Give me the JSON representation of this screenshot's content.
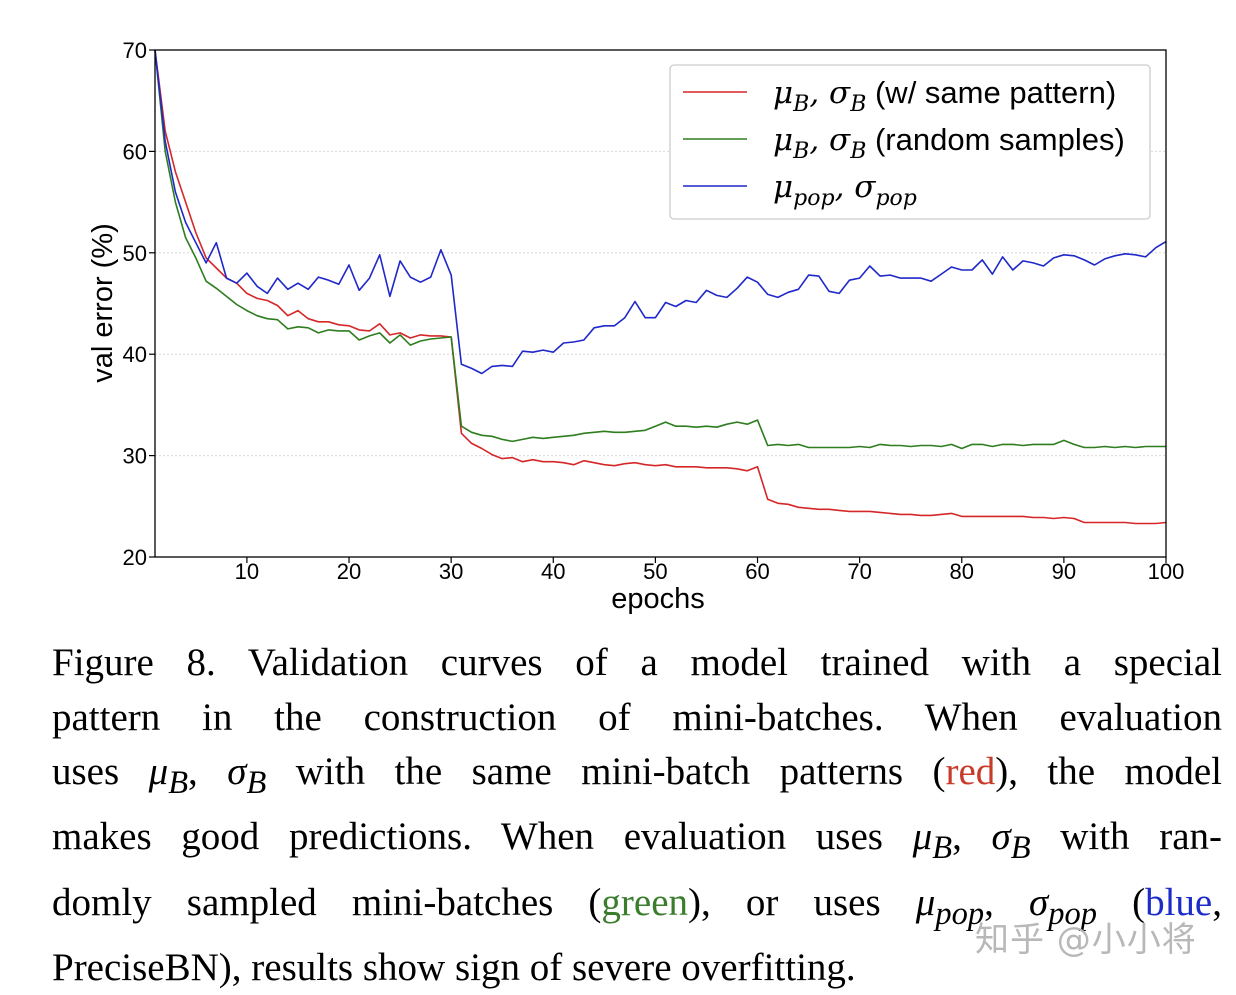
{
  "chart_data": {
    "type": "line",
    "xlabel": "epochs",
    "ylabel": "val error (%)",
    "xlim": [
      1,
      100
    ],
    "ylim": [
      20,
      70
    ],
    "xticks": [
      10,
      20,
      30,
      40,
      50,
      60,
      70,
      80,
      90,
      100
    ],
    "yticks": [
      20,
      30,
      40,
      50,
      60,
      70
    ],
    "grid": "horizontal dotted",
    "legend_position": "top-right",
    "series": [
      {
        "name": "μB, σB (w/ same pattern)",
        "legend_main": "μ",
        "legend_sub1": "B",
        "legend_mid": ", σ",
        "legend_sub2": "B",
        "legend_tail": " (w/ same pattern)",
        "color": "#d62728",
        "x": [
          1,
          2,
          3,
          4,
          5,
          6,
          7,
          8,
          9,
          10,
          11,
          12,
          13,
          14,
          15,
          16,
          17,
          18,
          19,
          20,
          21,
          22,
          23,
          24,
          25,
          26,
          27,
          28,
          29,
          30,
          31,
          32,
          33,
          34,
          35,
          36,
          37,
          38,
          39,
          40,
          41,
          42,
          43,
          44,
          45,
          46,
          47,
          48,
          49,
          50,
          51,
          52,
          53,
          54,
          55,
          56,
          57,
          58,
          59,
          60,
          61,
          62,
          63,
          64,
          65,
          66,
          67,
          68,
          69,
          70,
          71,
          72,
          73,
          74,
          75,
          76,
          77,
          78,
          79,
          80,
          81,
          82,
          83,
          84,
          85,
          86,
          87,
          88,
          89,
          90,
          91,
          92,
          93,
          94,
          95,
          96,
          97,
          98,
          99,
          100
        ],
        "values": [
          70,
          62,
          58,
          55,
          52,
          49.5,
          48.5,
          47.5,
          47,
          46,
          45.5,
          45.3,
          44.8,
          43.8,
          44.3,
          43.5,
          43.2,
          43.2,
          42.9,
          42.8,
          42.4,
          42.3,
          43,
          41.9,
          42.1,
          41.6,
          41.9,
          41.8,
          41.8,
          41.7,
          32.2,
          31.2,
          30.7,
          30.1,
          29.7,
          29.8,
          29.4,
          29.6,
          29.4,
          29.4,
          29.3,
          29.1,
          29.5,
          29.3,
          29.1,
          29,
          29.2,
          29.3,
          29.1,
          29,
          29.1,
          28.9,
          28.9,
          28.9,
          28.8,
          28.8,
          28.8,
          28.7,
          28.5,
          28.9,
          25.7,
          25.3,
          25.2,
          24.9,
          24.8,
          24.7,
          24.7,
          24.6,
          24.5,
          24.5,
          24.5,
          24.4,
          24.3,
          24.2,
          24.2,
          24.1,
          24.1,
          24.2,
          24.3,
          24,
          24,
          24,
          24,
          24,
          24,
          24,
          23.9,
          23.9,
          23.8,
          23.9,
          23.8,
          23.4,
          23.4,
          23.4,
          23.4,
          23.4,
          23.3,
          23.3,
          23.3,
          23.4
        ]
      },
      {
        "name": "μB, σB (random samples)",
        "legend_main": "μ",
        "legend_sub1": "B",
        "legend_mid": ", σ",
        "legend_sub2": "B",
        "legend_tail": " (random samples)",
        "color": "#2e7d1f",
        "x": [
          1,
          2,
          3,
          4,
          5,
          6,
          7,
          8,
          9,
          10,
          11,
          12,
          13,
          14,
          15,
          16,
          17,
          18,
          19,
          20,
          21,
          22,
          23,
          24,
          25,
          26,
          27,
          28,
          29,
          30,
          31,
          32,
          33,
          34,
          35,
          36,
          37,
          38,
          39,
          40,
          41,
          42,
          43,
          44,
          45,
          46,
          47,
          48,
          49,
          50,
          51,
          52,
          53,
          54,
          55,
          56,
          57,
          58,
          59,
          60,
          61,
          62,
          63,
          64,
          65,
          66,
          67,
          68,
          69,
          70,
          71,
          72,
          73,
          74,
          75,
          76,
          77,
          78,
          79,
          80,
          81,
          82,
          83,
          84,
          85,
          86,
          87,
          88,
          89,
          90,
          91,
          92,
          93,
          94,
          95,
          96,
          97,
          98,
          99,
          100
        ],
        "values": [
          70,
          60,
          55,
          51.5,
          49.5,
          47.2,
          46.5,
          45.7,
          44.9,
          44.3,
          43.8,
          43.5,
          43.4,
          42.5,
          42.7,
          42.6,
          42.1,
          42.4,
          42.3,
          42.3,
          41.4,
          41.8,
          42.1,
          41.1,
          41.9,
          40.9,
          41.3,
          41.5,
          41.6,
          41.7,
          32.9,
          32.3,
          32,
          31.9,
          31.6,
          31.4,
          31.6,
          31.8,
          31.7,
          31.8,
          31.9,
          32,
          32.2,
          32.3,
          32.4,
          32.3,
          32.3,
          32.4,
          32.5,
          32.9,
          33.3,
          32.9,
          32.9,
          32.8,
          32.9,
          32.8,
          33.1,
          33.3,
          33.1,
          33.5,
          31,
          31.1,
          31,
          31.1,
          30.8,
          30.8,
          30.8,
          30.8,
          30.8,
          30.9,
          30.8,
          31.1,
          31,
          31,
          30.9,
          31,
          31,
          30.9,
          31.1,
          30.7,
          31.1,
          31.1,
          30.9,
          31.1,
          31.1,
          31,
          31.1,
          31.1,
          31.1,
          31.5,
          31.1,
          30.8,
          30.8,
          30.9,
          30.8,
          30.9,
          30.8,
          30.9,
          30.9,
          30.9
        ]
      },
      {
        "name": "μpop, σpop",
        "legend_main": "μ",
        "legend_sub1": "pop",
        "legend_mid": ", σ",
        "legend_sub2": "pop",
        "legend_tail": "",
        "color": "#1f28c8",
        "x": [
          1,
          2,
          3,
          4,
          5,
          6,
          7,
          8,
          9,
          10,
          11,
          12,
          13,
          14,
          15,
          16,
          17,
          18,
          19,
          20,
          21,
          22,
          23,
          24,
          25,
          26,
          27,
          28,
          29,
          30,
          31,
          32,
          33,
          34,
          35,
          36,
          37,
          38,
          39,
          40,
          41,
          42,
          43,
          44,
          45,
          46,
          47,
          48,
          49,
          50,
          51,
          52,
          53,
          54,
          55,
          56,
          57,
          58,
          59,
          60,
          61,
          62,
          63,
          64,
          65,
          66,
          67,
          68,
          69,
          70,
          71,
          72,
          73,
          74,
          75,
          76,
          77,
          78,
          79,
          80,
          81,
          82,
          83,
          84,
          85,
          86,
          87,
          88,
          89,
          90,
          91,
          92,
          93,
          94,
          95,
          96,
          97,
          98,
          99,
          100
        ],
        "values": [
          70,
          61,
          56,
          53,
          51,
          49,
          51,
          47.5,
          47,
          48,
          46.7,
          46,
          47.5,
          46.4,
          47,
          46.4,
          47.6,
          47.3,
          46.9,
          48.8,
          46.3,
          47.5,
          49.8,
          45.7,
          49.2,
          47.6,
          47.1,
          47.6,
          50.3,
          47.8,
          39,
          38.6,
          38.1,
          38.8,
          38.9,
          38.8,
          40.3,
          40.2,
          40.4,
          40.2,
          41.1,
          41.2,
          41.4,
          42.6,
          42.8,
          42.8,
          43.6,
          45.2,
          43.6,
          43.6,
          45.1,
          44.7,
          45.3,
          45.1,
          46.3,
          45.8,
          45.6,
          46.5,
          47.6,
          47.1,
          45.9,
          45.6,
          46.1,
          46.4,
          47.8,
          47.7,
          46.2,
          46,
          47.3,
          47.5,
          48.7,
          47.7,
          47.8,
          47.5,
          47.5,
          47.5,
          47.2,
          47.9,
          48.6,
          48.3,
          48.3,
          49.3,
          47.9,
          49.6,
          48.3,
          49.2,
          49,
          48.7,
          49.5,
          49.8,
          49.7,
          49.3,
          48.8,
          49.4,
          49.7,
          49.9,
          49.8,
          49.6,
          50.5,
          51.1
        ]
      }
    ]
  },
  "caption": {
    "line1": "Figure 8. Validation curves of a model trained with a special",
    "line2": "pattern in the construction of mini-batches.  When evaluation",
    "line3_a": "uses ",
    "line3_mu": "μ",
    "line3_sub1": "B",
    "line3_mid": ", ",
    "line3_sigma": "σ",
    "line3_sub2": "B",
    "line3_b": " with the same mini-batch patterns (",
    "line3_red": "red",
    "line3_c": "), the model",
    "line4_a": "makes good predictions. When evaluation uses ",
    "line4_mu": "μ",
    "line4_sub1": "B",
    "line4_mid": ", ",
    "line4_sigma": "σ",
    "line4_sub2": "B",
    "line4_b": " with ran-",
    "line5_a": "domly sampled mini-batches (",
    "line5_green": "green",
    "line5_b": "), or uses ",
    "line5_mu": "μ",
    "line5_sub1": "pop",
    "line5_mid": ", ",
    "line5_sigma": "σ",
    "line5_sub2": "pop",
    "line5_c": " (",
    "line5_blue": "blue",
    "line5_d": ",",
    "line6": "PreciseBN), results show sign of severe overfitting."
  },
  "watermark": "知乎 @小小将"
}
